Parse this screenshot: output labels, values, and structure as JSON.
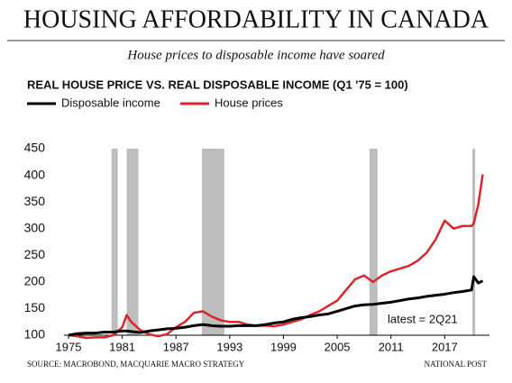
{
  "chart_data": {
    "type": "line",
    "title": "HOUSING AFFORDABILITY IN CANADA",
    "subtitle": "House prices to disposable income have soared",
    "chart_title": "REAL HOUSE PRICE VS. REAL DISPOSABLE INCOME (Q1 '75 = 100)",
    "annotation": "latest = 2Q21",
    "source": "SOURCE: MACROBOND, MACQUARIE MACRO STRATEGY",
    "credit": "NATIONAL POST",
    "x": [
      1975,
      1976,
      1977,
      1978,
      1979,
      1980,
      1981,
      1981.5,
      1982,
      1983,
      1984,
      1985,
      1986,
      1987,
      1988,
      1989,
      1990,
      1991,
      1992,
      1993,
      1994,
      1995,
      1996,
      1997,
      1998,
      1999,
      2000,
      2001,
      2002,
      2003,
      2004,
      2005,
      2006,
      2007,
      2008,
      2009,
      2010,
      2011,
      2012,
      2013,
      2014,
      2015,
      2016,
      2017,
      2018,
      2019,
      2020,
      2020.25,
      2020.75,
      2021.25
    ],
    "series": [
      {
        "name": "Disposable income",
        "color": "#000000",
        "values": [
          100,
          103,
          104,
          104,
          106,
          106,
          108,
          108,
          107,
          105,
          108,
          110,
          112,
          113,
          115,
          118,
          120,
          118,
          117,
          117,
          118,
          118,
          118,
          120,
          123,
          125,
          130,
          133,
          135,
          138,
          140,
          145,
          150,
          155,
          157,
          158,
          160,
          162,
          165,
          168,
          170,
          173,
          175,
          177,
          180,
          182,
          185,
          210,
          198,
          202
        ]
      },
      {
        "name": "House prices",
        "color": "#d9262b",
        "values": [
          100,
          98,
          95,
          96,
          96,
          100,
          115,
          138,
          125,
          110,
          102,
          98,
          102,
          115,
          125,
          142,
          145,
          135,
          128,
          125,
          125,
          120,
          118,
          118,
          117,
          120,
          125,
          130,
          138,
          145,
          155,
          165,
          185,
          205,
          212,
          200,
          212,
          220,
          225,
          230,
          240,
          255,
          280,
          315,
          300,
          305,
          305,
          310,
          345,
          402
        ]
      }
    ],
    "shaded_periods": [
      {
        "start": 1979.8,
        "end": 1980.5
      },
      {
        "start": 1981.5,
        "end": 1982.8
      },
      {
        "start": 1989.9,
        "end": 1992.4
      },
      {
        "start": 2008.6,
        "end": 2009.5
      },
      {
        "start": 2020.1,
        "end": 2020.4
      }
    ],
    "shade_color": "#bdbdbd",
    "xlim": [
      1974.5,
      2022
    ],
    "xticks": [
      1975,
      1981,
      1987,
      1993,
      1999,
      2005,
      2011,
      2017
    ],
    "ylim": [
      100,
      450
    ],
    "yticks": [
      100,
      150,
      200,
      250,
      300,
      350,
      400,
      450
    ]
  }
}
